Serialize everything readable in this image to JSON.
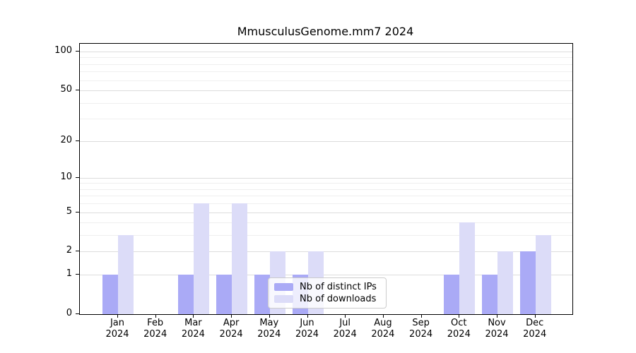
{
  "chart_data": {
    "type": "bar",
    "title": "MmusculusGenome.mm7 2024",
    "months": [
      "Jan",
      "Feb",
      "Mar",
      "Apr",
      "May",
      "Jun",
      "Jul",
      "Aug",
      "Sep",
      "Oct",
      "Nov",
      "Dec"
    ],
    "year": "2024",
    "series": [
      {
        "name": "Nb of distinct IPs",
        "color": "#aaaaf6",
        "values": [
          1,
          0,
          1,
          1,
          1,
          1,
          0,
          0,
          0,
          1,
          1,
          2
        ]
      },
      {
        "name": "Nb of downloads",
        "color": "#dcdcf8",
        "values": [
          3,
          0,
          6,
          6,
          2,
          2,
          0,
          0,
          0,
          4,
          2,
          3
        ]
      }
    ],
    "y_axis": {
      "scale": "log10(1+x)",
      "tick_values": [
        0,
        1,
        2,
        5,
        10,
        20,
        50,
        100
      ],
      "minor_gridline_values": [
        3,
        4,
        6,
        7,
        8,
        9,
        30,
        40,
        60,
        70,
        80,
        90
      ],
      "ylim": [
        0,
        115
      ]
    },
    "x_axis": {
      "grid": false
    },
    "grid": "horizontal",
    "legend_position": "inside-bottom-center"
  }
}
